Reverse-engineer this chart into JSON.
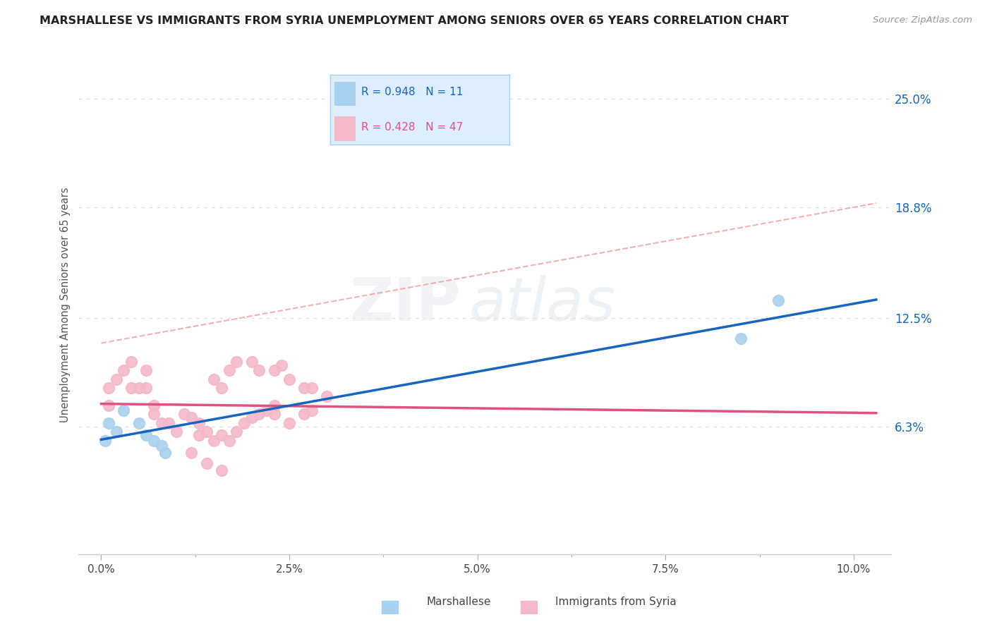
{
  "title": "MARSHALLESE VS IMMIGRANTS FROM SYRIA UNEMPLOYMENT AMONG SENIORS OVER 65 YEARS CORRELATION CHART",
  "source": "Source: ZipAtlas.com",
  "ylabel": "Unemployment Among Seniors over 65 years",
  "x_tick_labels": [
    "0.0%",
    "",
    "2.5%",
    "",
    "5.0%",
    "",
    "7.5%",
    "",
    "10.0%"
  ],
  "x_ticks": [
    0.0,
    0.0125,
    0.025,
    0.0375,
    0.05,
    0.0625,
    0.075,
    0.0875,
    0.1
  ],
  "y_tick_labels_right": [
    "25.0%",
    "18.8%",
    "12.5%",
    "6.3%"
  ],
  "y_ticks_right": [
    0.25,
    0.188,
    0.125,
    0.063
  ],
  "xlim": [
    -0.003,
    0.105
  ],
  "ylim": [
    -0.01,
    0.275
  ],
  "marshallese_color": "#a8d1f0",
  "syria_color": "#f5b8c8",
  "marshallese_line_color": "#1565C0",
  "syria_line_color": "#e05080",
  "dashed_line_color": "#f09090",
  "r_marshallese": 0.948,
  "n_marshallese": 11,
  "r_syria": 0.428,
  "n_syria": 47,
  "marshallese_points_x": [
    0.0005,
    0.001,
    0.002,
    0.003,
    0.005,
    0.006,
    0.007,
    0.008,
    0.0085,
    0.085,
    0.09
  ],
  "marshallese_points_y": [
    0.055,
    0.065,
    0.06,
    0.072,
    0.065,
    0.058,
    0.055,
    0.052,
    0.048,
    0.113,
    0.135
  ],
  "syria_points_x": [
    0.001,
    0.001,
    0.002,
    0.003,
    0.004,
    0.004,
    0.005,
    0.006,
    0.006,
    0.007,
    0.007,
    0.008,
    0.009,
    0.01,
    0.011,
    0.012,
    0.013,
    0.013,
    0.014,
    0.015,
    0.016,
    0.017,
    0.018,
    0.019,
    0.02,
    0.021,
    0.022,
    0.023,
    0.023,
    0.025,
    0.027,
    0.028,
    0.015,
    0.016,
    0.017,
    0.018,
    0.02,
    0.021,
    0.023,
    0.024,
    0.025,
    0.027,
    0.028,
    0.03,
    0.012,
    0.014,
    0.016
  ],
  "syria_points_y": [
    0.075,
    0.085,
    0.09,
    0.095,
    0.1,
    0.085,
    0.085,
    0.095,
    0.085,
    0.075,
    0.07,
    0.065,
    0.065,
    0.06,
    0.07,
    0.068,
    0.058,
    0.065,
    0.06,
    0.055,
    0.058,
    0.055,
    0.06,
    0.065,
    0.068,
    0.07,
    0.072,
    0.07,
    0.075,
    0.065,
    0.07,
    0.072,
    0.09,
    0.085,
    0.095,
    0.1,
    0.1,
    0.095,
    0.095,
    0.098,
    0.09,
    0.085,
    0.085,
    0.08,
    0.048,
    0.042,
    0.038
  ],
  "watermark_zip": "ZIP",
  "watermark_atlas": "atlas",
  "background_color": "#ffffff",
  "grid_color": "#dddddd",
  "legend_box_color": "#ddeeff",
  "legend_box_border": "#aaccee"
}
